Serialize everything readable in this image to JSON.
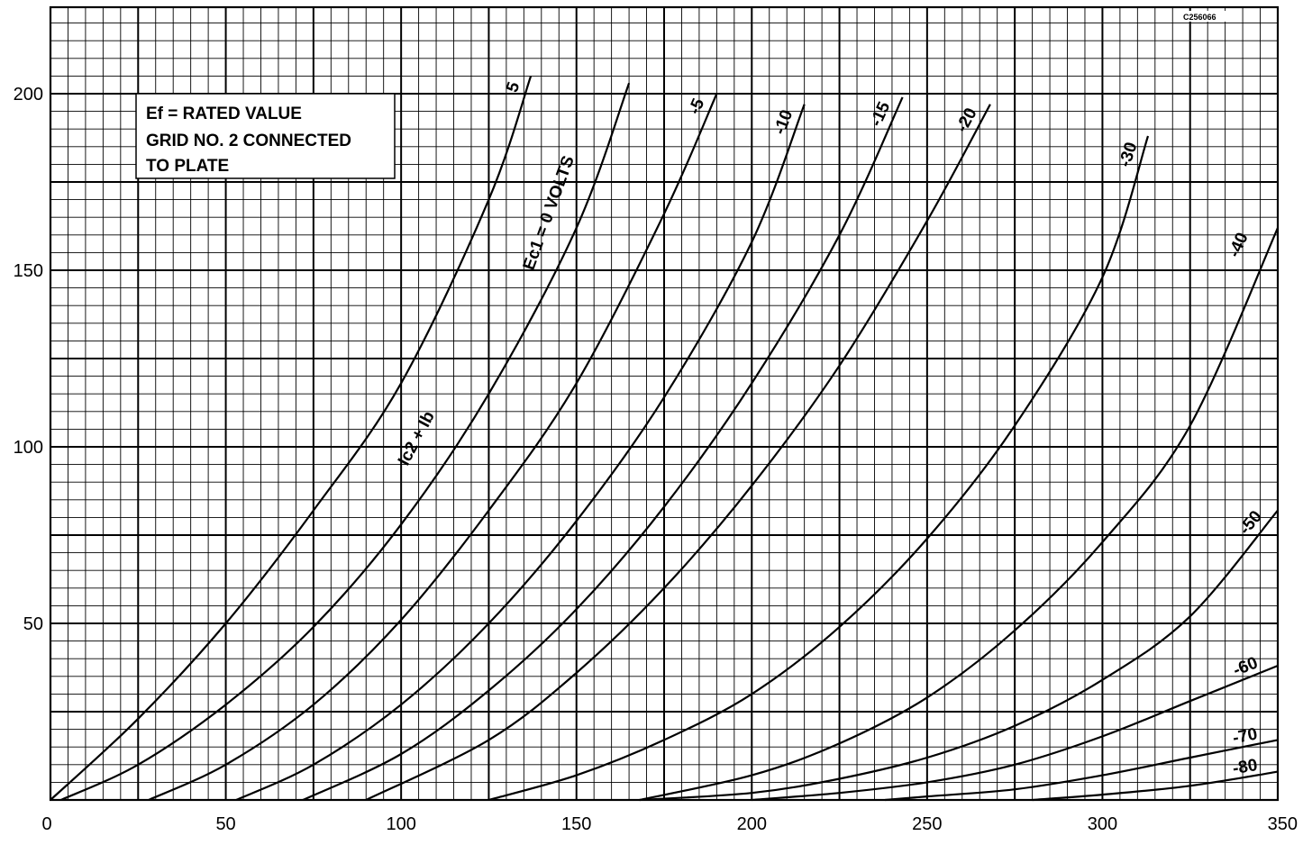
{
  "chart_data": {
    "type": "line",
    "title": "",
    "xlabel": "",
    "ylabel": "",
    "xlim": [
      0,
      350
    ],
    "ylim": [
      0,
      200
    ],
    "grid": true,
    "x_ticks": [
      "0",
      "50",
      "100",
      "150",
      "200",
      "250",
      "300",
      "350"
    ],
    "y_ticks": [
      "50",
      "100",
      "150",
      "200"
    ],
    "code": "C256066",
    "note_lines": [
      "Ef = RATED VALUE",
      "GRID NO. 2 CONNECTED",
      "TO PLATE"
    ],
    "screen_label": "Ic2 + Ib",
    "series": [
      {
        "name": "5",
        "label": "5",
        "x": [
          0,
          25,
          50,
          75,
          100,
          125,
          137
        ],
        "y": [
          0,
          23,
          50,
          82,
          118,
          170,
          205
        ]
      },
      {
        "name": "Ec1 = 0 VOLTS",
        "label": "Ec1 = 0 VOLTS",
        "x": [
          3,
          25,
          50,
          75,
          100,
          125,
          150,
          165
        ],
        "y": [
          0,
          10,
          27,
          49,
          78,
          115,
          162,
          203
        ]
      },
      {
        "name": "-5",
        "label": "-5",
        "x": [
          28,
          50,
          75,
          100,
          125,
          150,
          175,
          190
        ],
        "y": [
          0,
          10,
          27,
          51,
          82,
          118,
          166,
          200
        ]
      },
      {
        "name": "-10",
        "label": "-10",
        "x": [
          53,
          75,
          100,
          125,
          150,
          175,
          200,
          215
        ],
        "y": [
          0,
          10,
          27,
          50,
          79,
          114,
          158,
          197
        ]
      },
      {
        "name": "-15",
        "label": "-15",
        "x": [
          72,
          100,
          125,
          150,
          175,
          200,
          225,
          243
        ],
        "y": [
          0,
          13,
          31,
          54,
          83,
          118,
          160,
          199
        ]
      },
      {
        "name": "-20",
        "label": "-20",
        "x": [
          90,
          125,
          150,
          175,
          200,
          225,
          250,
          268
        ],
        "y": [
          0,
          17,
          36,
          60,
          89,
          123,
          164,
          197
        ]
      },
      {
        "name": "-30",
        "label": "-30",
        "x": [
          125,
          150,
          175,
          200,
          225,
          250,
          275,
          300,
          313
        ],
        "y": [
          0,
          7,
          17,
          30,
          49,
          74,
          106,
          148,
          188
        ]
      },
      {
        "name": "-40",
        "label": "-40",
        "x": [
          168,
          200,
          225,
          250,
          275,
          300,
          325,
          350
        ],
        "y": [
          0,
          7,
          16,
          29,
          48,
          73,
          106,
          162
        ]
      },
      {
        "name": "-50",
        "label": "-50",
        "x": [
          168,
          200,
          225,
          250,
          275,
          300,
          325,
          350
        ],
        "y": [
          0,
          2,
          6,
          12,
          21,
          34,
          52,
          82
        ]
      },
      {
        "name": "-60",
        "label": "-60",
        "x": [
          200,
          225,
          250,
          275,
          300,
          325,
          350
        ],
        "y": [
          0,
          2,
          5,
          10,
          18,
          28,
          38
        ]
      },
      {
        "name": "-70",
        "label": "-70",
        "x": [
          238,
          250,
          275,
          300,
          325,
          350
        ],
        "y": [
          0,
          1,
          3,
          7,
          12,
          17
        ]
      },
      {
        "name": "-80",
        "label": "-80",
        "x": [
          280,
          300,
          325,
          350
        ],
        "y": [
          0,
          1.5,
          4,
          8
        ]
      }
    ]
  },
  "style": {
    "line_color": "#000000",
    "background": "#ffffff"
  }
}
